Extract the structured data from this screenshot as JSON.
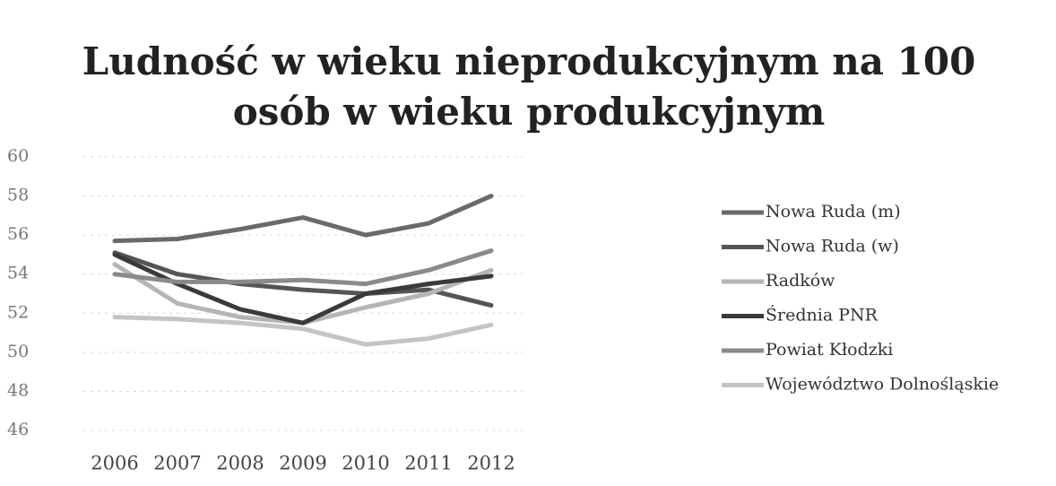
{
  "chart_data": {
    "type": "line",
    "title": [
      "Ludność w wieku nieprodukcyjnym na 100",
      "osób w wieku produkcyjnym"
    ],
    "categories": [
      "2006",
      "2007",
      "2008",
      "2009",
      "2010",
      "2011",
      "2012"
    ],
    "series": [
      {
        "name": "Nowa Ruda (m)",
        "color": "#6a6a6a",
        "values": [
          55.7,
          55.8,
          56.3,
          56.9,
          56.0,
          56.6,
          58.0
        ]
      },
      {
        "name": "Nowa Ruda (w)",
        "color": "#555555",
        "values": [
          55.1,
          54.0,
          53.5,
          53.2,
          53.0,
          53.2,
          52.4
        ]
      },
      {
        "name": "Radków",
        "color": "#b5b5b5",
        "values": [
          54.5,
          52.5,
          51.8,
          51.5,
          52.3,
          53.0,
          54.2
        ]
      },
      {
        "name": "Średnia PNR",
        "color": "#3a3a3a",
        "values": [
          55.0,
          53.5,
          52.2,
          51.5,
          53.0,
          53.5,
          53.9
        ]
      },
      {
        "name": "Powiat Kłodzki",
        "color": "#8a8a8a",
        "values": [
          54.0,
          53.6,
          53.6,
          53.7,
          53.5,
          54.2,
          55.2
        ]
      },
      {
        "name": "Województwo Dolnośląskie",
        "color": "#c4c4c4",
        "values": [
          51.8,
          51.7,
          51.5,
          51.2,
          50.4,
          50.7,
          51.4
        ]
      }
    ],
    "ylim": [
      46,
      60
    ],
    "yticks": [
      46,
      48,
      50,
      52,
      54,
      56,
      58,
      60
    ],
    "grid": true,
    "legend": "right"
  }
}
